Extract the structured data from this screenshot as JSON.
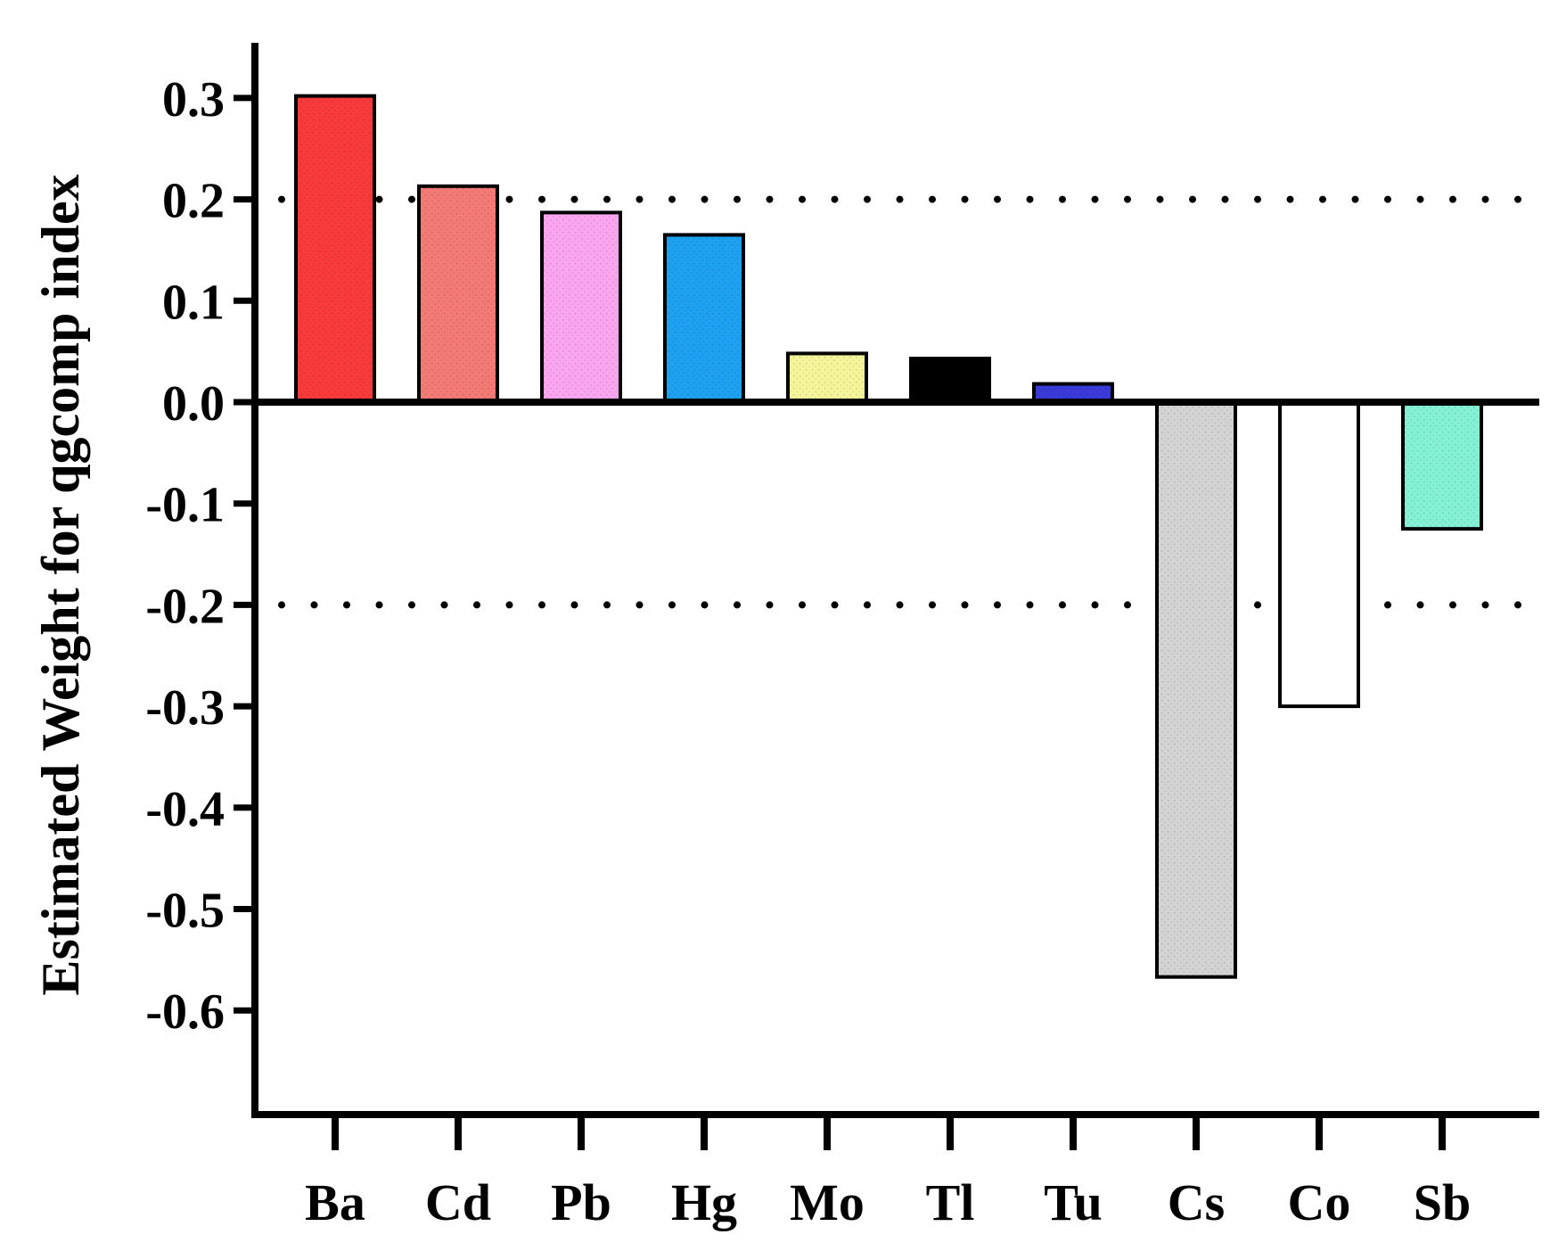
{
  "chart_data": {
    "type": "bar",
    "title": "",
    "xlabel": "",
    "ylabel": "Estimated Weight for qgcomp  index",
    "ylim": [
      -0.7,
      0.35
    ],
    "yticks": [
      0.3,
      0.2,
      0.1,
      0.0,
      -0.1,
      -0.2,
      -0.3,
      -0.4,
      -0.5,
      -0.6
    ],
    "ytick_labels": [
      "0.3",
      "0.2",
      "0.1",
      "0.0",
      "-0.1",
      "-0.2",
      "-0.3",
      "-0.4",
      "-0.5",
      "-0.6"
    ],
    "categories": [
      "Ba",
      "Cd",
      "Pb",
      "Hg",
      "Mo",
      "Tl",
      "Tu",
      "Cs",
      "Co",
      "Sb"
    ],
    "values": [
      0.302,
      0.213,
      0.187,
      0.165,
      0.048,
      0.043,
      0.018,
      -0.567,
      -0.3,
      -0.125
    ],
    "colors": [
      "#f83a3a",
      "#f47a76",
      "#f9a6ee",
      "#1ea1f0",
      "#f4f59a",
      "#000000",
      "#3a3ad8",
      "#d3d3d3",
      "#ffffff",
      "#85f1d4"
    ],
    "reference_lines": [
      0.2,
      -0.2
    ],
    "grid": false,
    "legend": "none"
  }
}
